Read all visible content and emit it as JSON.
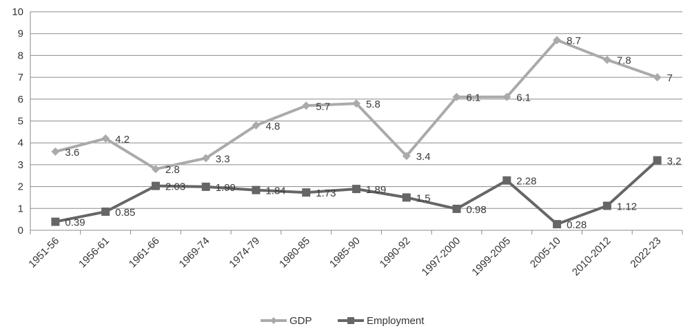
{
  "chart_data": {
    "type": "line",
    "categories": [
      "1951-56",
      "1956-61",
      "1961-66",
      "1969-74",
      "1974-79",
      "1980-85",
      "1985-90",
      "1990-92",
      "1997-2000",
      "1999-2005",
      "2005-10",
      "2010-2012",
      "2022-23"
    ],
    "series": [
      {
        "name": "GDP",
        "color": "#aaaaaa",
        "marker": "diamond",
        "values": [
          3.6,
          4.2,
          2.8,
          3.3,
          4.8,
          5.7,
          5.8,
          3.4,
          6.1,
          6.1,
          8.7,
          7.8,
          7
        ],
        "labels": [
          "3.6",
          "4.2",
          "2.8",
          "3.3",
          "4.8",
          "5.7",
          "5.8",
          "3.4",
          "6.1",
          "6.1",
          "8.7",
          "7.8",
          "7"
        ]
      },
      {
        "name": "Employment",
        "color": "#666666",
        "marker": "square",
        "values": [
          0.39,
          0.85,
          2.03,
          1.99,
          1.84,
          1.73,
          1.89,
          1.5,
          0.98,
          2.28,
          0.28,
          1.12,
          3.2
        ],
        "labels": [
          "0.39",
          "0.85",
          "2.03",
          "1.99",
          "1.84",
          "1.73",
          "1.89",
          "1.5",
          "0.98",
          "2.28",
          "0.28",
          "1.12",
          "3.2"
        ]
      }
    ],
    "yticks": [
      0,
      1,
      2,
      3,
      4,
      5,
      6,
      7,
      8,
      9,
      10
    ],
    "ylim": [
      0,
      10
    ],
    "title": "",
    "xlabel": "",
    "ylabel": "",
    "grid": true,
    "legend": "bottom"
  }
}
